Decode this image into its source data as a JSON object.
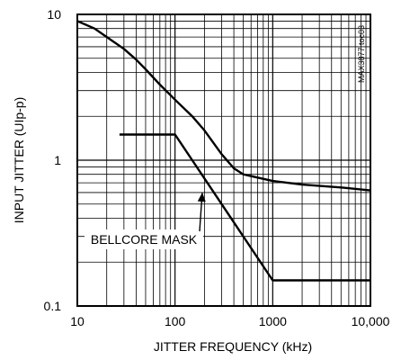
{
  "chart_data": {
    "type": "line",
    "x_scale": "log",
    "y_scale": "log",
    "xlabel": "JITTER FREQUENCY (kHz)",
    "ylabel": "INPUT JITTER (UIp-p)",
    "xlim": [
      10,
      10000
    ],
    "ylim": [
      0.1,
      10
    ],
    "x_tick_labels": [
      "10",
      "100",
      "1000",
      "10,000"
    ],
    "x_tick_values": [
      10,
      100,
      1000,
      10000
    ],
    "y_tick_labels": [
      "0.1",
      "1",
      "10"
    ],
    "y_tick_values": [
      0.1,
      1,
      10
    ],
    "grid": true,
    "watermark": "MAX3877 toc03",
    "annotations": [
      {
        "text": "BELLCORE MASK",
        "points_to": {
          "x": 190,
          "y": 0.6
        }
      }
    ],
    "series": [
      {
        "x": [
          10,
          15,
          20,
          30,
          40,
          50,
          70,
          100,
          150,
          200,
          300,
          400,
          500,
          700,
          1000,
          2000,
          5000,
          10000
        ],
        "y": [
          9.0,
          8.0,
          7.0,
          5.8,
          4.9,
          4.2,
          3.3,
          2.6,
          2.0,
          1.6,
          1.1,
          0.88,
          0.8,
          0.76,
          0.72,
          0.68,
          0.65,
          0.62
        ],
        "color": "#000000"
      },
      {
        "name": "BELLCORE MASK",
        "x": [
          27,
          100,
          1000,
          10000
        ],
        "y": [
          1.5,
          1.5,
          0.15,
          0.15
        ],
        "color": "#000000"
      }
    ]
  }
}
